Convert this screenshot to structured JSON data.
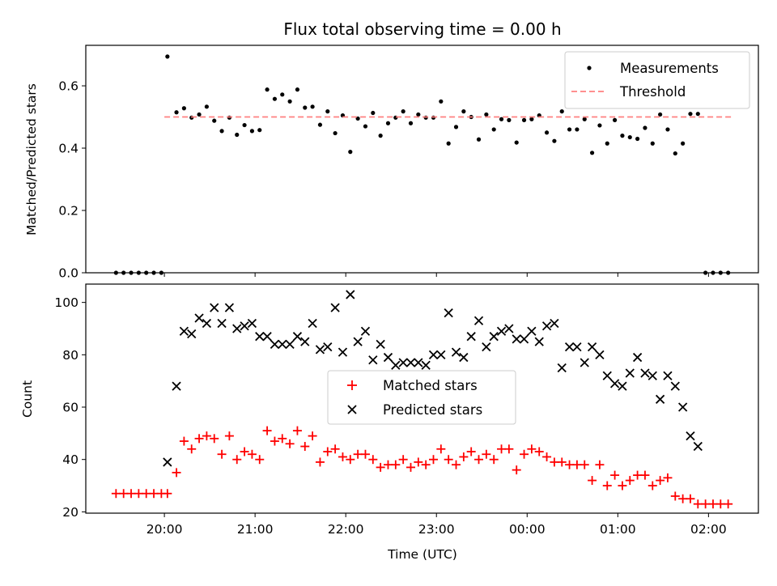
{
  "figure": {
    "title": "Flux total observing time = 0.00 h"
  },
  "chart_data": [
    {
      "type": "scatter",
      "panel": "top",
      "ylabel": "Matched/Predicted stars",
      "xlabel": "",
      "ylim": [
        0,
        0.73
      ],
      "yticks": [
        0.0,
        0.2,
        0.4,
        0.6
      ],
      "ytick_labels": [
        "0.0",
        "0.2",
        "0.4",
        "0.6"
      ],
      "xlim": [
        "19:08",
        "02:33"
      ],
      "xticks": [
        "20:00",
        "21:00",
        "22:00",
        "23:00",
        "00:00",
        "01:00",
        "02:00"
      ],
      "grid": false,
      "legend": "top-right",
      "series": [
        {
          "name": "Measurements",
          "marker": "dot",
          "color": "#000000",
          "points": [
            [
              "19:28",
              0.0
            ],
            [
              "19:33",
              0.0
            ],
            [
              "19:38",
              0.0
            ],
            [
              "19:43",
              0.0
            ],
            [
              "19:48",
              0.0
            ],
            [
              "19:53",
              0.0
            ],
            [
              "19:58",
              0.0
            ],
            [
              "20:02",
              0.694
            ],
            [
              "20:08",
              0.515
            ],
            [
              "20:13",
              0.528
            ],
            [
              "20:18",
              0.498
            ],
            [
              "20:23",
              0.508
            ],
            [
              "20:28",
              0.533
            ],
            [
              "20:33",
              0.488
            ],
            [
              "20:38",
              0.455
            ],
            [
              "20:43",
              0.498
            ],
            [
              "20:48",
              0.443
            ],
            [
              "20:53",
              0.474
            ],
            [
              "20:58",
              0.455
            ],
            [
              "21:03",
              0.458
            ],
            [
              "21:08",
              0.588
            ],
            [
              "21:13",
              0.558
            ],
            [
              "21:18",
              0.572
            ],
            [
              "21:23",
              0.55
            ],
            [
              "21:28",
              0.588
            ],
            [
              "21:33",
              0.53
            ],
            [
              "21:38",
              0.533
            ],
            [
              "21:43",
              0.475
            ],
            [
              "21:48",
              0.518
            ],
            [
              "21:53",
              0.448
            ],
            [
              "21:58",
              0.505
            ],
            [
              "22:03",
              0.388
            ],
            [
              "22:08",
              0.495
            ],
            [
              "22:13",
              0.47
            ],
            [
              "22:18",
              0.513
            ],
            [
              "22:23",
              0.44
            ],
            [
              "22:28",
              0.48
            ],
            [
              "22:33",
              0.498
            ],
            [
              "22:38",
              0.518
            ],
            [
              "22:43",
              0.48
            ],
            [
              "22:48",
              0.508
            ],
            [
              "22:53",
              0.498
            ],
            [
              "22:58",
              0.498
            ],
            [
              "23:03",
              0.55
            ],
            [
              "23:08",
              0.415
            ],
            [
              "23:13",
              0.468
            ],
            [
              "23:18",
              0.518
            ],
            [
              "23:23",
              0.5
            ],
            [
              "23:28",
              0.428
            ],
            [
              "23:33",
              0.508
            ],
            [
              "23:38",
              0.46
            ],
            [
              "23:43",
              0.493
            ],
            [
              "23:48",
              0.49
            ],
            [
              "23:53",
              0.418
            ],
            [
              "23:58",
              0.49
            ],
            [
              "00:03",
              0.493
            ],
            [
              "00:08",
              0.505
            ],
            [
              "00:13",
              0.45
            ],
            [
              "00:18",
              0.423
            ],
            [
              "00:23",
              0.518
            ],
            [
              "00:28",
              0.46
            ],
            [
              "00:33",
              0.46
            ],
            [
              "00:38",
              0.493
            ],
            [
              "00:43",
              0.385
            ],
            [
              "00:48",
              0.473
            ],
            [
              "00:53",
              0.415
            ],
            [
              "00:58",
              0.49
            ],
            [
              "01:03",
              0.44
            ],
            [
              "01:08",
              0.435
            ],
            [
              "01:13",
              0.43
            ],
            [
              "01:18",
              0.465
            ],
            [
              "01:23",
              0.415
            ],
            [
              "01:28",
              0.508
            ],
            [
              "01:33",
              0.46
            ],
            [
              "01:38",
              0.383
            ],
            [
              "01:43",
              0.415
            ],
            [
              "01:48",
              0.51
            ],
            [
              "01:53",
              0.51
            ],
            [
              "01:58",
              0.0
            ],
            [
              "02:03",
              0.0
            ],
            [
              "02:08",
              0.0
            ],
            [
              "02:13",
              0.0
            ]
          ]
        },
        {
          "name": "Threshold",
          "style": "dashed",
          "color": "#ff8080",
          "value": 0.5,
          "x_range": [
            "20:00",
            "02:15"
          ]
        }
      ]
    },
    {
      "type": "scatter",
      "panel": "bottom",
      "xlabel": "Time (UTC)",
      "ylabel": "Count",
      "ylim": [
        19.5,
        107
      ],
      "yticks": [
        20,
        40,
        60,
        80,
        100
      ],
      "ytick_labels": [
        "20",
        "40",
        "60",
        "80",
        "100"
      ],
      "xlim": [
        "19:08",
        "02:33"
      ],
      "xticks": [
        "20:00",
        "21:00",
        "22:00",
        "23:00",
        "00:00",
        "01:00",
        "02:00"
      ],
      "xtick_labels": [
        "20:00",
        "21:00",
        "22:00",
        "23:00",
        "00:00",
        "01:00",
        "02:00"
      ],
      "grid": false,
      "legend": "center",
      "series": [
        {
          "name": "Matched stars",
          "marker": "plus",
          "color": "#ff0000",
          "points": [
            [
              "19:28",
              27
            ],
            [
              "19:33",
              27
            ],
            [
              "19:38",
              27
            ],
            [
              "19:43",
              27
            ],
            [
              "19:48",
              27
            ],
            [
              "19:53",
              27
            ],
            [
              "19:58",
              27
            ],
            [
              "20:02",
              27
            ],
            [
              "20:08",
              35
            ],
            [
              "20:13",
              47
            ],
            [
              "20:18",
              44
            ],
            [
              "20:23",
              48
            ],
            [
              "20:28",
              49
            ],
            [
              "20:33",
              48
            ],
            [
              "20:38",
              42
            ],
            [
              "20:43",
              49
            ],
            [
              "20:48",
              40
            ],
            [
              "20:53",
              43
            ],
            [
              "20:58",
              42
            ],
            [
              "21:03",
              40
            ],
            [
              "21:08",
              51
            ],
            [
              "21:13",
              47
            ],
            [
              "21:18",
              48
            ],
            [
              "21:23",
              46
            ],
            [
              "21:28",
              51
            ],
            [
              "21:33",
              45
            ],
            [
              "21:38",
              49
            ],
            [
              "21:43",
              39
            ],
            [
              "21:48",
              43
            ],
            [
              "21:53",
              44
            ],
            [
              "21:58",
              41
            ],
            [
              "22:03",
              40
            ],
            [
              "22:08",
              42
            ],
            [
              "22:13",
              42
            ],
            [
              "22:18",
              40
            ],
            [
              "22:23",
              37
            ],
            [
              "22:28",
              38
            ],
            [
              "22:33",
              38
            ],
            [
              "22:38",
              40
            ],
            [
              "22:43",
              37
            ],
            [
              "22:48",
              39
            ],
            [
              "22:53",
              38
            ],
            [
              "22:58",
              40
            ],
            [
              "23:03",
              44
            ],
            [
              "23:08",
              40
            ],
            [
              "23:13",
              38
            ],
            [
              "23:18",
              41
            ],
            [
              "23:23",
              43
            ],
            [
              "23:28",
              40
            ],
            [
              "23:33",
              42
            ],
            [
              "23:38",
              40
            ],
            [
              "23:43",
              44
            ],
            [
              "23:48",
              44
            ],
            [
              "23:53",
              36
            ],
            [
              "23:58",
              42
            ],
            [
              "00:03",
              44
            ],
            [
              "00:08",
              43
            ],
            [
              "00:13",
              41
            ],
            [
              "00:18",
              39
            ],
            [
              "00:23",
              39
            ],
            [
              "00:28",
              38
            ],
            [
              "00:33",
              38
            ],
            [
              "00:38",
              38
            ],
            [
              "00:43",
              32
            ],
            [
              "00:48",
              38
            ],
            [
              "00:53",
              30
            ],
            [
              "00:58",
              34
            ],
            [
              "01:03",
              30
            ],
            [
              "01:08",
              32
            ],
            [
              "01:13",
              34
            ],
            [
              "01:18",
              34
            ],
            [
              "01:23",
              30
            ],
            [
              "01:28",
              32
            ],
            [
              "01:33",
              33
            ],
            [
              "01:38",
              26
            ],
            [
              "01:43",
              25
            ],
            [
              "01:48",
              25
            ],
            [
              "01:53",
              23
            ],
            [
              "01:58",
              23
            ],
            [
              "02:03",
              23
            ],
            [
              "02:08",
              23
            ],
            [
              "02:13",
              23
            ]
          ]
        },
        {
          "name": "Predicted stars",
          "marker": "x",
          "color": "#000000",
          "points": [
            [
              "20:02",
              39
            ],
            [
              "20:08",
              68
            ],
            [
              "20:13",
              89
            ],
            [
              "20:18",
              88
            ],
            [
              "20:23",
              94
            ],
            [
              "20:28",
              92
            ],
            [
              "20:33",
              98
            ],
            [
              "20:38",
              92
            ],
            [
              "20:43",
              98
            ],
            [
              "20:48",
              90
            ],
            [
              "20:53",
              91
            ],
            [
              "20:58",
              92
            ],
            [
              "21:03",
              87
            ],
            [
              "21:08",
              87
            ],
            [
              "21:13",
              84
            ],
            [
              "21:18",
              84
            ],
            [
              "21:23",
              84
            ],
            [
              "21:28",
              87
            ],
            [
              "21:33",
              85
            ],
            [
              "21:38",
              92
            ],
            [
              "21:43",
              82
            ],
            [
              "21:48",
              83
            ],
            [
              "21:53",
              98
            ],
            [
              "21:58",
              81
            ],
            [
              "22:03",
              103
            ],
            [
              "22:08",
              85
            ],
            [
              "22:13",
              89
            ],
            [
              "22:18",
              78
            ],
            [
              "22:23",
              84
            ],
            [
              "22:28",
              79
            ],
            [
              "22:33",
              76
            ],
            [
              "22:38",
              77
            ],
            [
              "22:43",
              77
            ],
            [
              "22:48",
              77
            ],
            [
              "22:53",
              76
            ],
            [
              "22:58",
              80
            ],
            [
              "23:03",
              80
            ],
            [
              "23:08",
              96
            ],
            [
              "23:13",
              81
            ],
            [
              "23:18",
              79
            ],
            [
              "23:23",
              87
            ],
            [
              "23:28",
              93
            ],
            [
              "23:33",
              83
            ],
            [
              "23:38",
              87
            ],
            [
              "23:43",
              89
            ],
            [
              "23:48",
              90
            ],
            [
              "23:53",
              86
            ],
            [
              "23:58",
              86
            ],
            [
              "00:03",
              89
            ],
            [
              "00:08",
              85
            ],
            [
              "00:13",
              91
            ],
            [
              "00:18",
              92
            ],
            [
              "00:23",
              75
            ],
            [
              "00:28",
              83
            ],
            [
              "00:33",
              83
            ],
            [
              "00:38",
              77
            ],
            [
              "00:43",
              83
            ],
            [
              "00:48",
              80
            ],
            [
              "00:53",
              72
            ],
            [
              "00:58",
              69
            ],
            [
              "01:03",
              68
            ],
            [
              "01:08",
              73
            ],
            [
              "01:13",
              79
            ],
            [
              "01:18",
              73
            ],
            [
              "01:23",
              72
            ],
            [
              "01:28",
              63
            ],
            [
              "01:33",
              72
            ],
            [
              "01:38",
              68
            ],
            [
              "01:43",
              60
            ],
            [
              "01:48",
              49
            ],
            [
              "01:53",
              45
            ]
          ]
        }
      ]
    }
  ]
}
